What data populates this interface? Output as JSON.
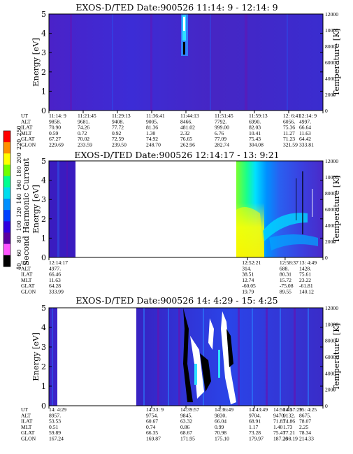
{
  "chart_data": [
    {
      "type": "heatmap",
      "title": "EXOS-D/TED   Date:900526  11:14: 9 - 12:14: 9",
      "ylabel": "Energy [eV]",
      "y2label": "Temperature [K]",
      "ylim": [
        0,
        5
      ],
      "y2lim": [
        0,
        12000
      ],
      "yticks": [
        "0",
        "1",
        "2",
        "3",
        "4",
        "5"
      ],
      "y2ticks": [
        "0",
        "2000",
        "4000",
        "6000",
        "8000",
        "10000",
        "12000"
      ],
      "data_segments": [
        [
          0.0,
          1.0
        ]
      ],
      "hot_spots": [
        {
          "x": 0.345,
          "y0": 3.4,
          "y1": 5.0
        }
      ],
      "annotation_rows": [
        "UT",
        "ALT",
        "ILAT",
        "MLT",
        "GLAT",
        "GLON"
      ],
      "annotation_columns": [
        {
          "x": 0.0,
          "values": [
            "11:14: 9",
            "9858.",
            "70.90",
            "0.59",
            "67.27",
            "229.69"
          ]
        },
        {
          "x": 0.125,
          "values": [
            "11:21:45",
            "9681.",
            "74.26",
            "0.72",
            "70.02",
            "233.59"
          ]
        },
        {
          "x": 0.25,
          "values": [
            "11:29:13",
            "9408.",
            "77.72",
            "0.92",
            "72.59",
            "239.50"
          ]
        },
        {
          "x": 0.375,
          "values": [
            "11:36:41",
            "9005.",
            "81.36",
            "1.30",
            "74.92",
            "248.70"
          ]
        },
        {
          "x": 0.5,
          "values": [
            "11:44:13",
            "8466.",
            "481.02",
            "2.32",
            "76.65",
            "262.96"
          ]
        },
        {
          "x": 0.625,
          "values": [
            "11:51:45",
            "7792.",
            "999.00",
            "6.76",
            "77.09",
            "282.74"
          ]
        },
        {
          "x": 0.75,
          "values": [
            "11:59:13",
            "6990.",
            "82.03",
            "10.41",
            "75.43",
            "304.08"
          ]
        },
        {
          "x": 0.875,
          "values": [
            "12: 6:41",
            "6056.",
            "75.36",
            "11.27",
            "71.23",
            "321.59"
          ]
        },
        {
          "x": 1.0,
          "values": [
            "12:14: 9",
            "4997.",
            "66.64",
            "11.63",
            "64.42",
            "333.81"
          ]
        }
      ]
    },
    {
      "type": "heatmap",
      "title": "EXOS-D/TED   Date:900526  12:14:17 - 13: 9:21",
      "ylabel": "Energy [eV]",
      "y2label": "Temperature [K]",
      "ylim": [
        0,
        5
      ],
      "y2lim": [
        0,
        12000
      ],
      "yticks": [
        "0",
        "1",
        "2",
        "3",
        "4",
        "5"
      ],
      "y2ticks": [
        "0",
        "2000",
        "4000",
        "6000",
        "8000",
        "10000",
        "12000"
      ],
      "data_segments": [
        [
          0.0,
          0.09
        ],
        [
          0.71,
          1.0
        ]
      ],
      "hot_spots": [],
      "annotation_rows": [
        "UT",
        "ALT",
        "ILAT",
        "MLT",
        "GLAT",
        "GLON"
      ],
      "annotation_columns": [
        {
          "x": 0.0,
          "values": [
            "12:14:17",
            "4977.",
            "66.46",
            "11.63",
            "64.28",
            "333.99"
          ]
        },
        {
          "x": 0.725,
          "values": [
            "12:52:21",
            "314.",
            "38.51",
            "12.74",
            "-60.05",
            "19.79"
          ]
        },
        {
          "x": 0.862,
          "values": [
            "12:58:37",
            "688.",
            "80.31",
            "15.72",
            "-75.08",
            "89.55"
          ]
        },
        {
          "x": 1.0,
          "values": [
            "13: 4:49",
            "1428.",
            "75.61",
            "23.22",
            "-61.81",
            "140.12"
          ]
        }
      ]
    },
    {
      "type": "heatmap",
      "title": "EXOS-D/TED   Date:900526  14: 4:29 - 15: 4:25",
      "ylabel": "Energy [eV]",
      "y2label": "Temperature [K]",
      "ylim": [
        0,
        5
      ],
      "y2lim": [
        0,
        12000
      ],
      "yticks": [
        "0",
        "1",
        "2",
        "3",
        "4",
        "5"
      ],
      "y2ticks": [
        "0",
        "2000",
        "4000",
        "6000",
        "8000",
        "10000",
        "12000"
      ],
      "data_segments": [
        [
          0.0,
          0.05
        ],
        [
          0.345,
          1.0
        ]
      ],
      "hot_spots": [
        {
          "x": 0.52,
          "y0": 0.4,
          "y1": 4.5
        },
        {
          "x": 0.56,
          "y0": 1.0,
          "y1": 3.8
        },
        {
          "x": 0.67,
          "y0": 0.3,
          "y1": 5.0
        }
      ],
      "annotation_rows": [
        "UT",
        "ALT",
        "ILAT",
        "MLT",
        "GLAT",
        "GLON"
      ],
      "annotation_columns": [
        {
          "x": 0.0,
          "values": [
            "14: 4:29",
            "8957.",
            "53.53",
            "0.51",
            "59.89",
            "167.24"
          ]
        },
        {
          "x": 0.375,
          "values": [
            "14:33: 9",
            "9754.",
            "60.67",
            "0.74",
            "66.35",
            "169.87"
          ]
        },
        {
          "x": 0.5,
          "values": [
            "14:39:57",
            "9845.",
            "63.32",
            "0.86",
            "68.67",
            "171.95"
          ]
        },
        {
          "x": 0.625,
          "values": [
            "14:36:49",
            "9830.",
            "66.04",
            "0.99",
            "70.98",
            "175.10"
          ]
        },
        {
          "x": 0.75,
          "values": [
            "14:43:49",
            "9704.",
            "68.91",
            "1.17",
            "73.28",
            "179.97"
          ]
        },
        {
          "x": 0.75,
          "values": [
            "14:50:41",
            "9470.",
            "71.83",
            "1.40",
            "75.41",
            "187.26"
          ]
        },
        {
          "x": 0.875,
          "values": [
            "14:57:29",
            "9132.",
            "74.86",
            "1.73",
            "77.21",
            "198.19"
          ]
        },
        {
          "x": 1.0,
          "values": [
            "15: 4:25",
            "8675.",
            "78.07",
            "2.25",
            "78.34",
            "214.33"
          ]
        }
      ]
    }
  ],
  "colorbar": {
    "label": "Second Harmonic Current",
    "ticks": [
      "40",
      "60",
      "80",
      "100",
      "120",
      "140",
      "160",
      "180",
      "200",
      "220",
      "250"
    ],
    "colors": [
      "#000000",
      "#ff55ff",
      "#5a00a0",
      "#3000e0",
      "#0040ff",
      "#0090ff",
      "#00ddee",
      "#00ff90",
      "#70ff00",
      "#ffff00",
      "#ff9000",
      "#ff0000"
    ]
  }
}
